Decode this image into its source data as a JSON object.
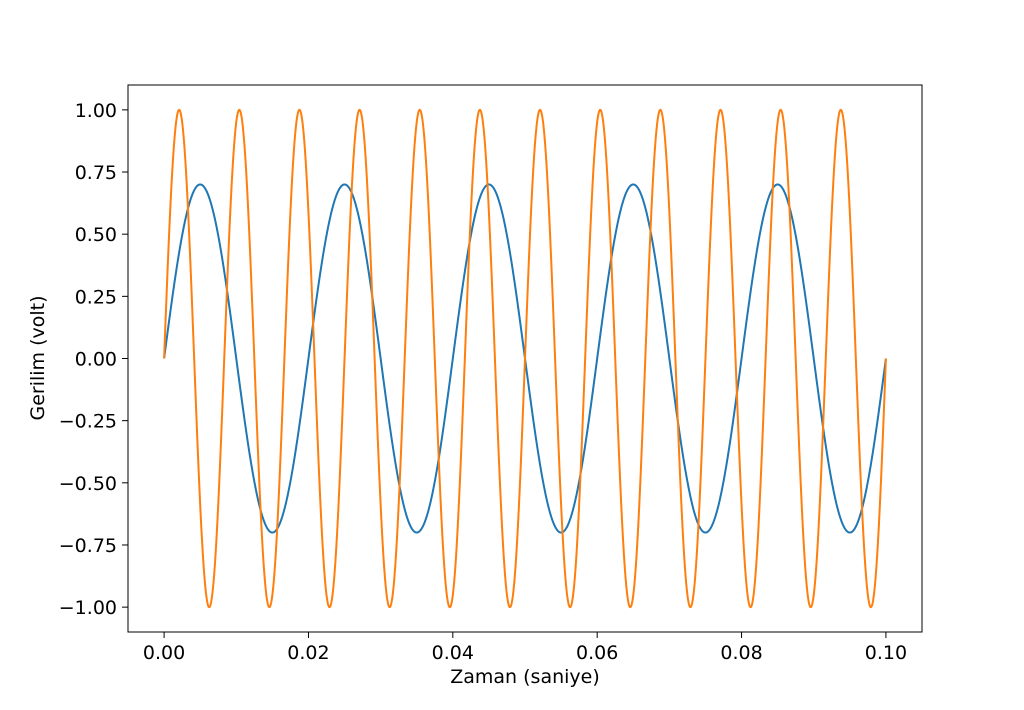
{
  "chart_data": {
    "type": "line",
    "title": "",
    "xlabel": "Zaman (saniye)",
    "ylabel": "Gerilim (volt)",
    "xlim": [
      -0.005,
      0.105
    ],
    "ylim": [
      -1.1,
      1.1
    ],
    "x_ticks": [
      0.0,
      0.02,
      0.04,
      0.06,
      0.08,
      0.1
    ],
    "x_tick_labels": [
      "0.00",
      "0.02",
      "0.04",
      "0.06",
      "0.08",
      "0.10"
    ],
    "y_ticks": [
      -1.0,
      -0.75,
      -0.5,
      -0.25,
      0.0,
      0.25,
      0.5,
      0.75,
      1.0
    ],
    "y_tick_labels": [
      "−1.00",
      "−0.75",
      "−0.50",
      "−0.25",
      "0.00",
      "0.25",
      "0.50",
      "0.75",
      "1.00"
    ],
    "grid": false,
    "series": [
      {
        "amplitude": 0.7,
        "frequency_hz": 50,
        "x_start": 0.0,
        "x_end": 0.1,
        "color": "#1f77b4"
      },
      {
        "amplitude": 1.0,
        "frequency_hz": 120,
        "x_start": 0.0,
        "x_end": 0.1,
        "color": "#ff7f0e"
      }
    ]
  }
}
